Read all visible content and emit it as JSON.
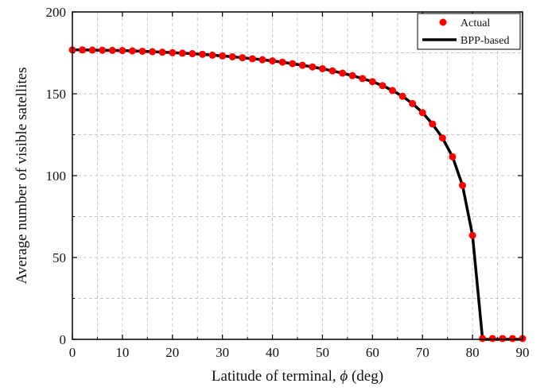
{
  "chart_data": {
    "type": "line",
    "title": "",
    "xlabel_prefix": "Latitude of terminal, ",
    "xlabel_symbol": "ϕ",
    "xlabel_suffix": " (deg)",
    "ylabel": "Average number of visible satellites",
    "xlim": [
      0,
      90
    ],
    "ylim": [
      0,
      200
    ],
    "xticks": [
      0,
      10,
      20,
      30,
      40,
      50,
      60,
      70,
      80,
      90
    ],
    "yticks": [
      0,
      50,
      100,
      150,
      200
    ],
    "grid": true,
    "legend_position": "top-right",
    "series": [
      {
        "name": "Actual",
        "kind": "markers",
        "color": "#ff0000",
        "x": [
          0,
          2,
          4,
          6,
          8,
          10,
          12,
          14,
          16,
          18,
          20,
          22,
          24,
          26,
          28,
          30,
          32,
          34,
          36,
          38,
          40,
          42,
          44,
          46,
          48,
          50,
          52,
          54,
          56,
          58,
          60,
          62,
          64,
          66,
          68,
          70,
          72,
          74,
          76,
          78,
          80,
          82,
          84,
          86,
          88,
          90
        ],
        "y": [
          176.8,
          176.8,
          176.7,
          176.6,
          176.5,
          176.4,
          176.2,
          176.0,
          175.7,
          175.4,
          175.1,
          174.8,
          174.5,
          174.1,
          173.6,
          173.1,
          172.6,
          172.0,
          171.4,
          170.8,
          170.1,
          169.3,
          168.4,
          167.4,
          166.4,
          165.3,
          164.0,
          162.6,
          161.1,
          159.3,
          157.4,
          155.0,
          152.0,
          148.5,
          144.0,
          138.5,
          131.5,
          123.0,
          111.5,
          94.0,
          63.5,
          0.5,
          0.5,
          0.5,
          0.5,
          0.5
        ]
      },
      {
        "name": "BPP-based",
        "kind": "line",
        "color": "#000000",
        "x": [
          0,
          2,
          4,
          6,
          8,
          10,
          12,
          14,
          16,
          18,
          20,
          22,
          24,
          26,
          28,
          30,
          32,
          34,
          36,
          38,
          40,
          42,
          44,
          46,
          48,
          50,
          52,
          54,
          56,
          58,
          60,
          62,
          64,
          66,
          68,
          70,
          72,
          74,
          76,
          78,
          80,
          81,
          82,
          84,
          86,
          88,
          90
        ],
        "y": [
          176.8,
          176.8,
          176.7,
          176.6,
          176.5,
          176.4,
          176.2,
          176.0,
          175.7,
          175.4,
          175.1,
          174.8,
          174.5,
          174.1,
          173.6,
          173.1,
          172.6,
          172.0,
          171.4,
          170.8,
          170.1,
          169.3,
          168.4,
          167.4,
          166.4,
          165.3,
          164.0,
          162.6,
          161.1,
          159.3,
          157.4,
          155.0,
          152.0,
          148.5,
          144.0,
          138.5,
          131.5,
          123.0,
          111.5,
          94.0,
          63.5,
          32.0,
          0,
          0,
          0,
          0,
          0
        ]
      }
    ]
  }
}
